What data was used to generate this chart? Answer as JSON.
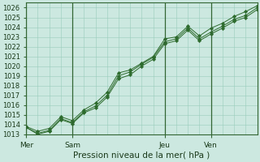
{
  "title": "Pression niveau de la mer( hPa )",
  "ylim": [
    1013,
    1026.5
  ],
  "yticks": [
    1013,
    1014,
    1015,
    1016,
    1017,
    1018,
    1019,
    1020,
    1021,
    1022,
    1023,
    1024,
    1025,
    1026
  ],
  "day_labels": [
    "Mer",
    "Sam",
    "Jeu",
    "Ven"
  ],
  "day_positions": [
    0,
    4,
    12,
    16
  ],
  "xlim": [
    0,
    20
  ],
  "background_color": "#cce8e0",
  "grid_color": "#99ccbb",
  "line_color": "#2d6b2d",
  "marker_color": "#2d6b2d",
  "axis_color": "#336633",
  "text_color": "#1a3a1a",
  "series1_x": [
    0,
    1,
    2,
    3,
    4,
    5,
    6,
    7,
    8,
    9,
    10,
    11,
    12,
    13,
    14,
    15,
    16,
    17,
    18,
    19,
    20
  ],
  "series1_y": [
    1013.8,
    1013.3,
    1013.6,
    1014.8,
    1014.4,
    1015.5,
    1016.2,
    1017.3,
    1019.3,
    1019.6,
    1020.3,
    1021.0,
    1022.8,
    1023.0,
    1024.1,
    1023.1,
    1023.9,
    1024.4,
    1025.1,
    1025.6,
    1026.2
  ],
  "series2_x": [
    0,
    1,
    2,
    3,
    4,
    5,
    6,
    7,
    8,
    9,
    10,
    11,
    12,
    13,
    14,
    15,
    16,
    17,
    18,
    19,
    20
  ],
  "series2_y": [
    1013.7,
    1013.1,
    1013.4,
    1014.6,
    1014.2,
    1015.3,
    1015.9,
    1017.0,
    1019.0,
    1019.4,
    1020.2,
    1020.9,
    1022.5,
    1022.8,
    1023.9,
    1022.8,
    1023.5,
    1024.1,
    1024.8,
    1025.2,
    1026.0
  ],
  "series3_x": [
    0,
    1,
    2,
    3,
    4,
    5,
    6,
    7,
    8,
    9,
    10,
    11,
    12,
    13,
    14,
    15,
    16,
    17,
    18,
    19,
    20
  ],
  "series3_y": [
    1013.7,
    1013.0,
    1013.3,
    1014.5,
    1014.1,
    1015.2,
    1015.7,
    1016.8,
    1018.7,
    1019.1,
    1020.0,
    1020.7,
    1022.3,
    1022.6,
    1023.7,
    1022.6,
    1023.3,
    1023.9,
    1024.6,
    1025.0,
    1025.8
  ]
}
